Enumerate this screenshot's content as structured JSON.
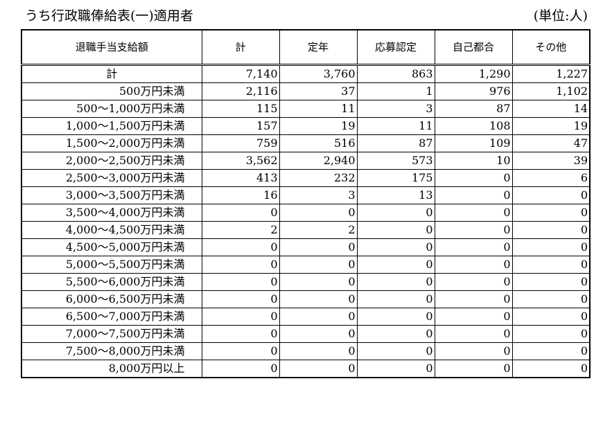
{
  "title": "うち行政職俸給表(一)適用者",
  "unit": "(単位:人)",
  "columns": [
    "退職手当支給額",
    "計",
    "定年",
    "応募認定",
    "自己都合",
    "その他"
  ],
  "rows": [
    {
      "label": "計",
      "values": [
        "7,140",
        "3,760",
        "863",
        "1,290",
        "1,227"
      ]
    },
    {
      "label": "500万円未満",
      "values": [
        "2,116",
        "37",
        "1",
        "976",
        "1,102"
      ]
    },
    {
      "label": "500～1,000万円未満",
      "values": [
        "115",
        "11",
        "3",
        "87",
        "14"
      ]
    },
    {
      "label": "1,000～1,500万円未満",
      "values": [
        "157",
        "19",
        "11",
        "108",
        "19"
      ]
    },
    {
      "label": "1,500～2,000万円未満",
      "values": [
        "759",
        "516",
        "87",
        "109",
        "47"
      ]
    },
    {
      "label": "2,000～2,500万円未満",
      "values": [
        "3,562",
        "2,940",
        "573",
        "10",
        "39"
      ]
    },
    {
      "label": "2,500～3,000万円未満",
      "values": [
        "413",
        "232",
        "175",
        "0",
        "6"
      ]
    },
    {
      "label": "3,000～3,500万円未満",
      "values": [
        "16",
        "3",
        "13",
        "0",
        "0"
      ]
    },
    {
      "label": "3,500～4,000万円未満",
      "values": [
        "0",
        "0",
        "0",
        "0",
        "0"
      ]
    },
    {
      "label": "4,000～4,500万円未満",
      "values": [
        "2",
        "2",
        "0",
        "0",
        "0"
      ]
    },
    {
      "label": "4,500～5,000万円未満",
      "values": [
        "0",
        "0",
        "0",
        "0",
        "0"
      ]
    },
    {
      "label": "5,000～5,500万円未満",
      "values": [
        "0",
        "0",
        "0",
        "0",
        "0"
      ]
    },
    {
      "label": "5,500～6,000万円未満",
      "values": [
        "0",
        "0",
        "0",
        "0",
        "0"
      ]
    },
    {
      "label": "6,000～6,500万円未満",
      "values": [
        "0",
        "0",
        "0",
        "0",
        "0"
      ]
    },
    {
      "label": "6,500～7,000万円未満",
      "values": [
        "0",
        "0",
        "0",
        "0",
        "0"
      ]
    },
    {
      "label": "7,000～7,500万円未満",
      "values": [
        "0",
        "0",
        "0",
        "0",
        "0"
      ]
    },
    {
      "label": "7,500～8,000万円未満",
      "values": [
        "0",
        "0",
        "0",
        "0",
        "0"
      ]
    },
    {
      "label": "8,000万円以上",
      "values": [
        "0",
        "0",
        "0",
        "0",
        "0"
      ]
    }
  ]
}
